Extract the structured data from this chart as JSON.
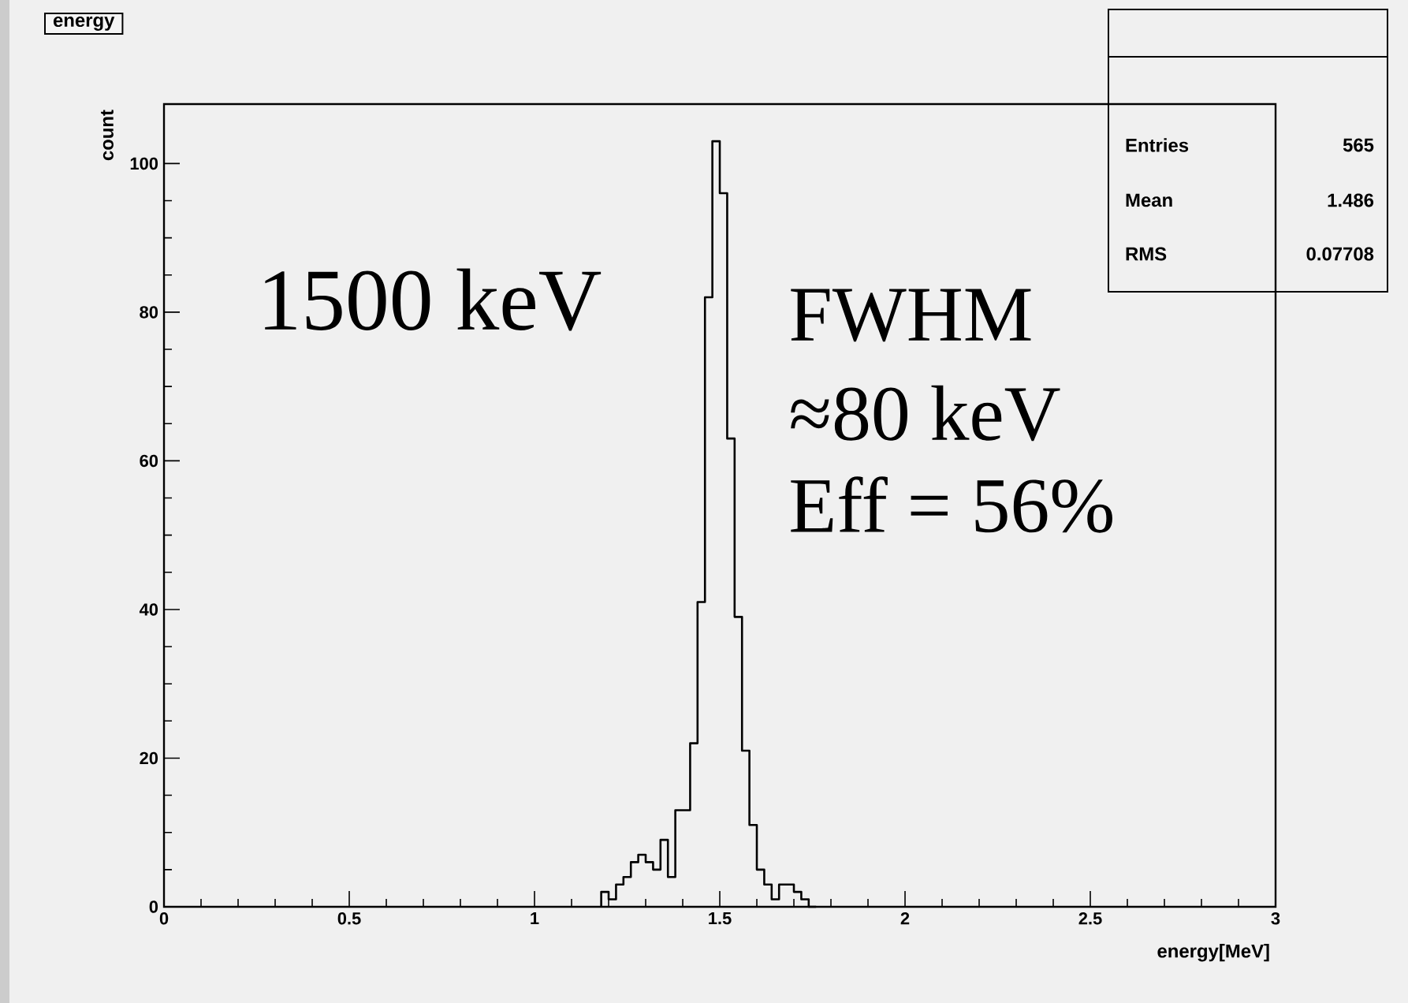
{
  "chart_data": {
    "type": "histogram",
    "title": "energy",
    "xlabel": "energy[MeV]",
    "ylabel": "count",
    "bins": [
      1.18,
      1.2,
      1.22,
      1.24,
      1.26,
      1.28,
      1.3,
      1.32,
      1.34,
      1.36,
      1.38,
      1.4,
      1.42,
      1.44,
      1.46,
      1.48,
      1.5,
      1.52,
      1.54,
      1.56,
      1.58,
      1.6,
      1.62,
      1.64,
      1.66,
      1.68,
      1.7,
      1.72,
      1.74,
      1.76
    ],
    "values": [
      2,
      1,
      3,
      4,
      6,
      7,
      6,
      5,
      9,
      4,
      13,
      13,
      22,
      41,
      82,
      103,
      96,
      63,
      39,
      21,
      11,
      5,
      3,
      1,
      3,
      3,
      2,
      1,
      0
    ],
    "color": "#000000",
    "xlim": [
      0,
      3
    ],
    "ylim": [
      0,
      108
    ],
    "xticks": [
      0,
      0.5,
      1,
      1.5,
      2,
      2.5,
      3
    ],
    "yticks": [
      0,
      20,
      40,
      60,
      80,
      100
    ],
    "grid": false,
    "annotations": [
      "Entries",
      "565",
      "Mean",
      "1.486",
      "RMS",
      "0.07708",
      "1500 keV",
      "FWHM",
      "≈80 keV",
      "Eff = 56%"
    ]
  }
}
